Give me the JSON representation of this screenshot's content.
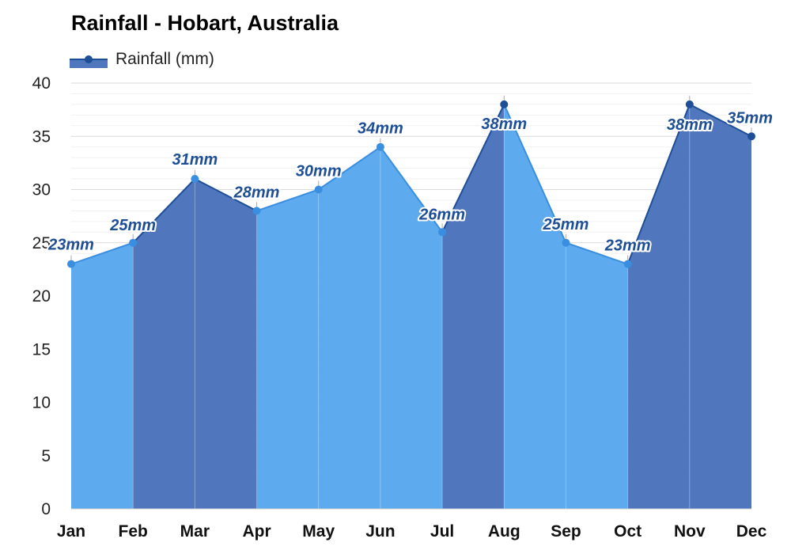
{
  "colors": {
    "light_fill": "#5eaaee",
    "light_line": "#3a8ee0",
    "dark_fill": "#5077be",
    "dark_line": "#1e4f96",
    "grid": "#e3e3e3",
    "label": "#1e4f96"
  },
  "chart_data": {
    "type": "area",
    "title": "Rainfall - Hobart, Australia",
    "xlabel": "",
    "ylabel": "",
    "categories": [
      "Jan",
      "Feb",
      "Mar",
      "Apr",
      "May",
      "Jun",
      "Jul",
      "Aug",
      "Sep",
      "Oct",
      "Nov",
      "Dec"
    ],
    "series": [
      {
        "name": "Rainfall (mm)",
        "values": [
          23,
          25,
          31,
          28,
          30,
          34,
          26,
          38,
          25,
          23,
          38,
          35
        ],
        "data_labels": [
          "23mm",
          "25mm",
          "31mm",
          "28mm",
          "30mm",
          "34mm",
          "26mm",
          "38mm",
          "25mm",
          "23mm",
          "38mm",
          "35mm"
        ]
      }
    ],
    "ylim": [
      0,
      40
    ],
    "yticks": [
      0,
      5,
      10,
      15,
      20,
      25,
      30,
      35,
      40
    ],
    "grid": true,
    "legend_position": "top-left"
  }
}
